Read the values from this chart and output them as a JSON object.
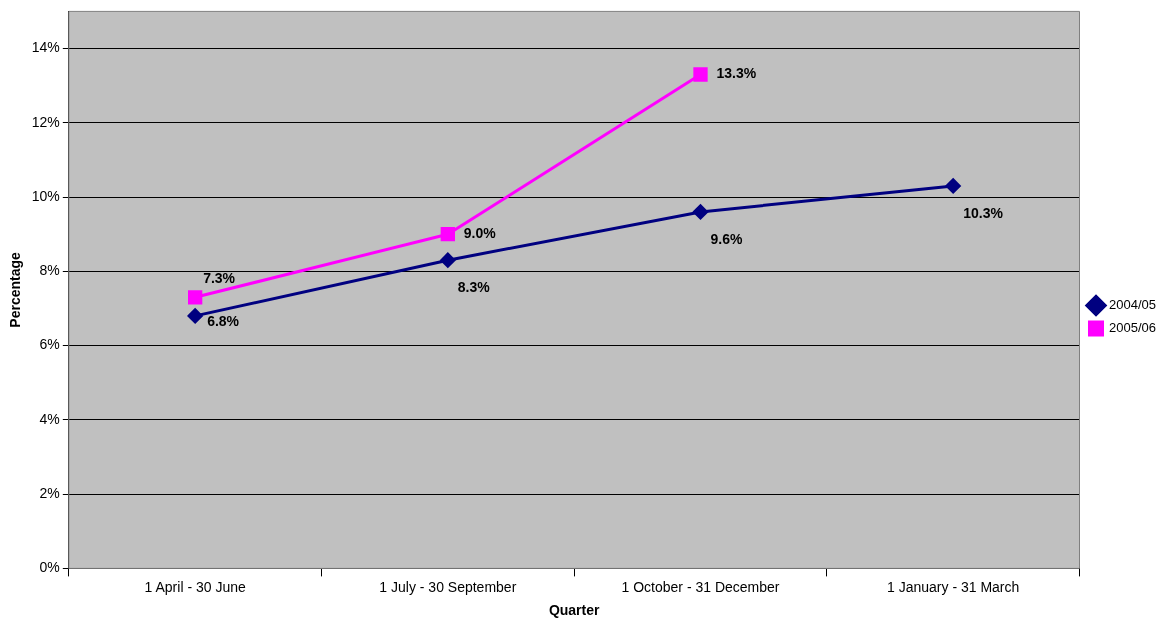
{
  "chart_data": {
    "type": "line",
    "xlabel": "Quarter",
    "ylabel": "Percentage",
    "categories": [
      "1 April - 30 June",
      "1 July - 30 September",
      "1 October - 31 December",
      "1 January - 31 March"
    ],
    "series": [
      {
        "name": "2004/05",
        "color": "#000080",
        "marker": "diamond",
        "values": [
          6.8,
          8.3,
          9.6,
          10.3
        ],
        "value_labels": [
          "6.8%",
          "8.3%",
          "9.6%",
          "10.3%"
        ]
      },
      {
        "name": "2005/06",
        "color": "#ff00ff",
        "marker": "square",
        "values": [
          7.3,
          9.0,
          13.3,
          null
        ],
        "value_labels": [
          "7.3%",
          "9.0%",
          "13.3%",
          null
        ]
      }
    ],
    "ylim": [
      0,
      15
    ],
    "yticks": [
      {
        "value": 0,
        "label": "0%"
      },
      {
        "value": 2,
        "label": "2%"
      },
      {
        "value": 4,
        "label": "4%"
      },
      {
        "value": 6,
        "label": "6%"
      },
      {
        "value": 8,
        "label": "8%"
      },
      {
        "value": 10,
        "label": "10%"
      },
      {
        "value": 12,
        "label": "12%"
      },
      {
        "value": 14,
        "label": "14%"
      }
    ],
    "grid": "y",
    "legend": "right"
  }
}
